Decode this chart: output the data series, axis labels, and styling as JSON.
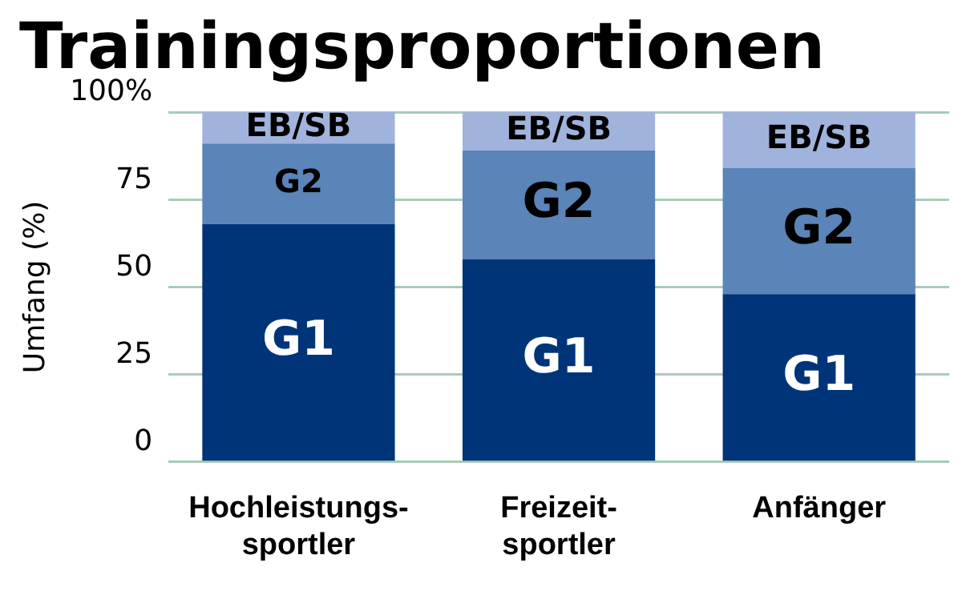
{
  "chart_data": {
    "type": "bar",
    "title": "Trainingsproportionen",
    "ylabel": "Umfang (%)",
    "categories": [
      "Hochleistungs-\nsportler",
      "Freizeit-\nsportler",
      "Anfänger"
    ],
    "stacked": true,
    "series": [
      {
        "name": "G1",
        "color": "#003479",
        "values": [
          68,
          58,
          48
        ]
      },
      {
        "name": "G2",
        "color": "#5b84b8",
        "values": [
          23,
          31,
          36
        ]
      },
      {
        "name": "EB/SB",
        "color": "#a0b3dc",
        "values": [
          9,
          11,
          16
        ]
      }
    ],
    "ylim": [
      0,
      100
    ],
    "yticks": [
      0,
      25,
      50,
      75,
      {
        "value": 100,
        "label": "100%"
      }
    ],
    "grid": "y",
    "legend": false
  }
}
